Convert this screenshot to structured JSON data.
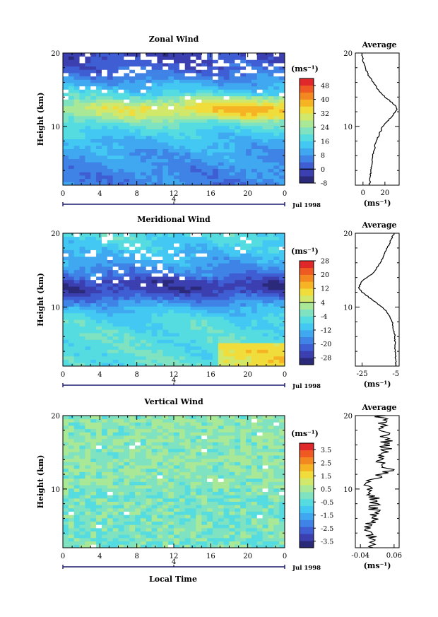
{
  "figure": {
    "xlabel": "Local Time",
    "date_label": "Jul 1998",
    "day_label": "4",
    "unit_label": "(ms⁻¹)",
    "ylabel": "Height (km)",
    "average_title": "Average",
    "average_unit": "(ms⁻¹)"
  },
  "chart_data": [
    {
      "type": "heatmap",
      "title": "Zonal Wind",
      "ylabel": "Height (km)",
      "x_ticks": [
        "0",
        "4",
        "8",
        "12",
        "16",
        "20",
        "0"
      ],
      "y_ticks": [
        "10",
        "20"
      ],
      "xlim": [
        0,
        24
      ],
      "ylim": [
        2,
        20
      ],
      "colorbar": {
        "min": -8,
        "max": 52,
        "ticks": [
          -8,
          0,
          8,
          16,
          24,
          32,
          40,
          48
        ],
        "tick_labels": [
          "-8",
          "0",
          "8",
          "16",
          "24",
          "32",
          "40",
          "48"
        ],
        "zero_line": 0
      },
      "profile_knots": [
        [
          2,
          6
        ],
        [
          4,
          7
        ],
        [
          6,
          9
        ],
        [
          8,
          12
        ],
        [
          10,
          18
        ],
        [
          11,
          24
        ],
        [
          12,
          30
        ],
        [
          12.6,
          31
        ],
        [
          13.3,
          26
        ],
        [
          14,
          20
        ],
        [
          15,
          14
        ],
        [
          16,
          9
        ],
        [
          17,
          5
        ],
        [
          18,
          2
        ],
        [
          19,
          0
        ],
        [
          20,
          -1
        ]
      ],
      "average": {
        "type": "line",
        "title": "Average",
        "x_ticks": [
          "0",
          "20"
        ],
        "xtick_values": [
          0,
          20
        ],
        "xlim": [
          -7,
          33
        ],
        "y_ticks": [
          "10",
          "20"
        ],
        "ylim": [
          2,
          20
        ]
      }
    },
    {
      "type": "heatmap",
      "title": "Meridional Wind",
      "ylabel": "Height (km)",
      "x_ticks": [
        "0",
        "4",
        "8",
        "12",
        "16",
        "20",
        "0"
      ],
      "y_ticks": [
        "10",
        "20"
      ],
      "xlim": [
        0,
        24
      ],
      "ylim": [
        2,
        20
      ],
      "colorbar": {
        "min": -32,
        "max": 28,
        "ticks": [
          -28,
          -20,
          -12,
          -4,
          4,
          12,
          20,
          28
        ],
        "tick_labels": [
          "-28",
          "-20",
          "-12",
          "-4",
          "4",
          "12",
          "20",
          "28"
        ],
        "zero_line": 4
      },
      "profile_knots": [
        [
          2,
          -5
        ],
        [
          6,
          -5.5
        ],
        [
          8,
          -7
        ],
        [
          9,
          -9
        ],
        [
          10,
          -13
        ],
        [
          11,
          -19
        ],
        [
          12,
          -25
        ],
        [
          12.7,
          -27
        ],
        [
          13.5,
          -25
        ],
        [
          14.5,
          -19
        ],
        [
          16,
          -14
        ],
        [
          18,
          -10
        ],
        [
          20,
          -6
        ]
      ],
      "average": {
        "type": "line",
        "title": "Average",
        "x_ticks": [
          "-25",
          "-5"
        ],
        "xtick_values": [
          -25,
          -5
        ],
        "xlim": [
          -29,
          -3
        ],
        "y_ticks": [
          "10",
          "20"
        ],
        "ylim": [
          2,
          20
        ]
      }
    },
    {
      "type": "heatmap",
      "title": "Vertical Wind",
      "ylabel": "Height (km)",
      "x_ticks": [
        "0",
        "4",
        "8",
        "12",
        "16",
        "20",
        "0"
      ],
      "y_ticks": [
        "10",
        "20"
      ],
      "xlim": [
        0,
        24
      ],
      "ylim": [
        2,
        20
      ],
      "colorbar": {
        "min": -4,
        "max": 4,
        "ticks": [
          -3.5,
          -2.5,
          -1.5,
          -0.5,
          0.5,
          1.5,
          2.5,
          3.5
        ],
        "tick_labels": [
          "-3.5",
          "-2.5",
          "-1.5",
          "-0.5",
          "0.5",
          "1.5",
          "2.5",
          "3.5"
        ],
        "zero_line": null
      },
      "profile_knots": [
        [
          2,
          0
        ],
        [
          5,
          -0.01
        ],
        [
          8,
          0.005
        ],
        [
          11,
          -0.02
        ],
        [
          12.5,
          0.05
        ],
        [
          14,
          0.02
        ],
        [
          16,
          0.04
        ],
        [
          18,
          0.03
        ],
        [
          20,
          0.02
        ]
      ],
      "average": {
        "type": "line",
        "title": "Average",
        "x_ticks": [
          "-0.04",
          "0.06"
        ],
        "xtick_values": [
          -0.04,
          0.06
        ],
        "xlim": [
          -0.055,
          0.075
        ],
        "y_ticks": [
          "10",
          "20"
        ],
        "ylim": [
          2,
          20
        ]
      }
    }
  ],
  "colors": {
    "palette": [
      "#2b2a7a",
      "#3b3fb0",
      "#3f5ed4",
      "#3f83e6",
      "#3fa8f0",
      "#42c8f2",
      "#55dce0",
      "#7fe2c0",
      "#a8e896",
      "#d2e86a",
      "#f0dc3a",
      "#f6b424",
      "#f48820",
      "#ee5a22",
      "#e0282a"
    ],
    "contour": "#000000",
    "missing": "#ffffff"
  }
}
